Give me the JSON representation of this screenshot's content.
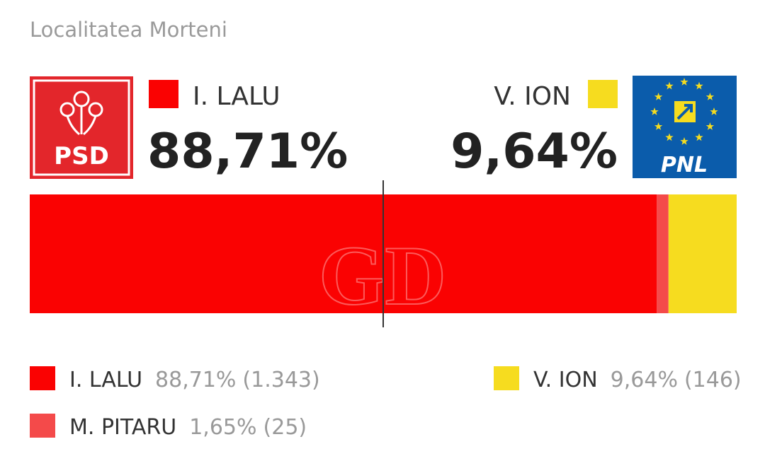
{
  "chart_data": {
    "type": "stacked-bar",
    "title": "Localitatea Morteni",
    "xlim": [
      0,
      100
    ],
    "xticks": [
      50
    ],
    "watermark": "GD",
    "parties": [
      "PSD",
      "PNL"
    ],
    "series": [
      {
        "name": "I. LALU",
        "color": "#fa0202",
        "values": [
          88.71
        ],
        "value_labels": [
          "88,71%"
        ],
        "counts": [
          1343
        ],
        "count_labels": [
          "(1.343)"
        ]
      },
      {
        "name": "M. PITARU",
        "color": "#f44a4a",
        "values": [
          1.65
        ],
        "value_labels": [
          "1,65%"
        ],
        "counts": [
          25
        ],
        "count_labels": [
          "(25)"
        ]
      },
      {
        "name": "V. ION",
        "color": "#f6dc1f",
        "values": [
          9.64
        ],
        "value_labels": [
          "9,64%"
        ],
        "counts": [
          146
        ],
        "count_labels": [
          "(146)"
        ]
      }
    ]
  }
}
